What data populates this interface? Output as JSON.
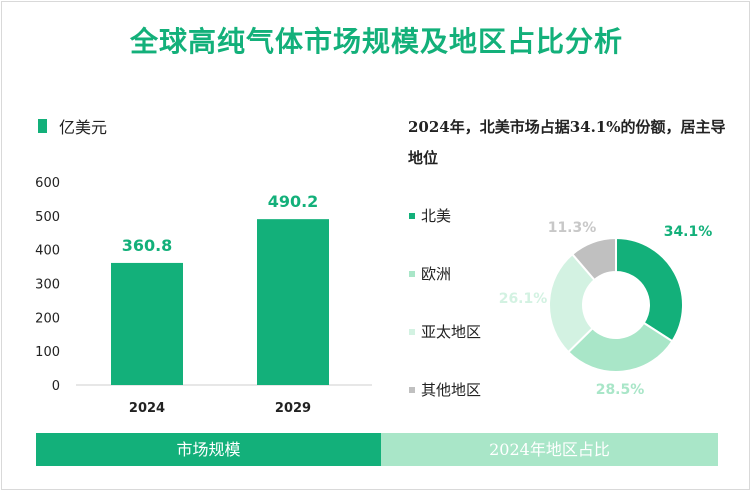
{
  "title": "全球高纯气体市场规模及地区占比分析",
  "bar_chart": {
    "legend_label": "亿美元",
    "color": "#13b07a"
  },
  "donut_note": "2024年，北美市场占据34.1%的份额，居主导地位",
  "footer": {
    "left": "市场规模",
    "right": "2024年地区占比"
  },
  "chart_data": [
    {
      "type": "bar",
      "categories": [
        "2024",
        "2029"
      ],
      "values": [
        360.8,
        490.2
      ],
      "value_labels": [
        "360.8",
        "490.2"
      ],
      "ylim": [
        0,
        600
      ],
      "yticks": [
        0,
        100,
        200,
        300,
        400,
        500,
        600
      ],
      "legend": "亿美元",
      "grid": false
    },
    {
      "type": "pie",
      "donut": true,
      "labels": [
        "北美",
        "欧洲",
        "亚太地区",
        "其他地区"
      ],
      "values": [
        34.1,
        28.5,
        26.1,
        11.3
      ],
      "value_labels": [
        "34.1%",
        "28.5%",
        "26.1%",
        "11.3%"
      ],
      "colors": [
        "#13b07a",
        "#a9e6c8",
        "#d3f2e2",
        "#c0c0c0"
      ],
      "label_colors": [
        "#13b07a",
        "#a9e6c8",
        "#d3f2e2",
        "#c8c8c8"
      ]
    }
  ]
}
